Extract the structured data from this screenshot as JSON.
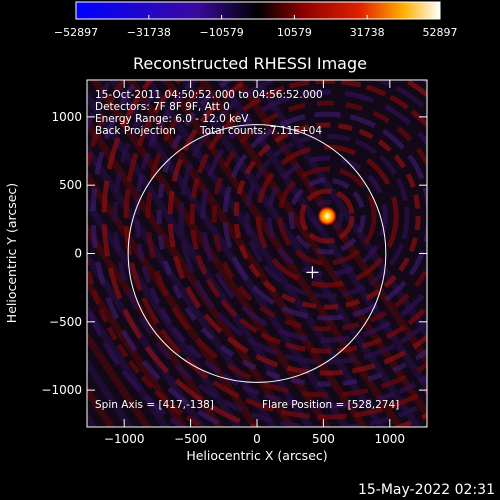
{
  "chart_data": {
    "type": "heatmap",
    "title": "Reconstructed RHESSI Image",
    "xlabel": "Heliocentric X (arcsec)",
    "ylabel": "Heliocentric Y (arcsec)",
    "xlim": [
      -1280,
      1280
    ],
    "ylim": [
      -1270,
      1270
    ],
    "x_ticks": [
      -1000,
      -500,
      0,
      500,
      1000
    ],
    "y_ticks": [
      -1000,
      -500,
      0,
      500,
      1000
    ],
    "x_tick_labels": [
      "−1000",
      "−500",
      "0",
      "500",
      "1000"
    ],
    "y_tick_labels": [
      "−1000",
      "−500",
      "0",
      "500",
      "1000"
    ],
    "colorbar": {
      "min": -52897,
      "max": 52897,
      "tick_values": [
        -52897,
        -31738,
        -10579,
        10579,
        31738,
        52897
      ],
      "tick_labels": [
        "−52897",
        "−31738",
        "−10579",
        "10579",
        "31738",
        "52897"
      ]
    },
    "annotations": [
      "15-Oct-2011 04:50:52.000 to 04:56:52.000",
      "Detectors: 7F 8F 9F, Att 0",
      "Energy Range: 6.0 - 12.0 keV",
      "Back Projection",
      "Total counts: 7.11E+04"
    ],
    "spin_axis_label": "Spin Axis = [417,-138]",
    "flare_position_label": "Flare Position = [528,274]",
    "spin_axis": [
      417,
      -138
    ],
    "flare_position": [
      528,
      274
    ],
    "solar_limb_radius": 970
  },
  "timestamp": "15-May-2022 02:31"
}
